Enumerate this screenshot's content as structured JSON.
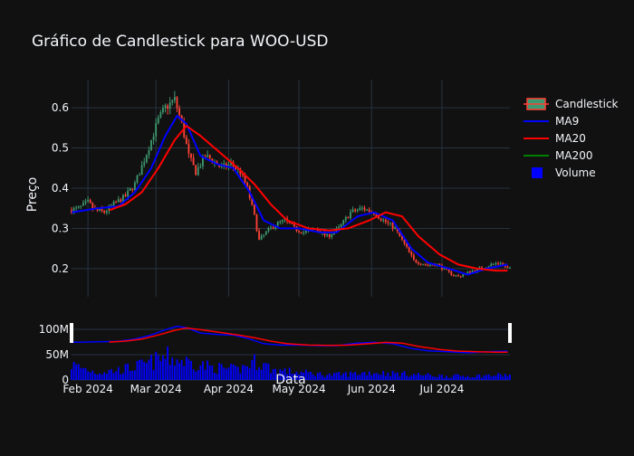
{
  "colors": {
    "background": "#111111",
    "grid": "#283442",
    "text": "#f2f5fa",
    "increasing": "#3D9970",
    "decreasing": "#FF4136",
    "ma9": "#0000ff",
    "ma20": "#ff0000",
    "ma200": "#008000",
    "volume": "#0000ff"
  },
  "chart_data": {
    "type": "candlestick",
    "title": "Gráfico de Candlestick para WOO-USD",
    "ylabel": "Preço",
    "xlabel": "Data",
    "legend_position": "top-right",
    "grid": true,
    "price_ylim": [
      0.13,
      0.67
    ],
    "price_yticks": [
      0.2,
      0.3,
      0.4,
      0.5,
      0.6
    ],
    "price_ytick_labels": [
      "0.2",
      "0.3",
      "0.4",
      "0.5",
      "0.6"
    ],
    "volume_ylim": [
      0,
      125000000
    ],
    "volume_yticks": [
      0,
      50000000,
      100000000
    ],
    "volume_ytick_labels": [
      "0",
      "50M",
      "100M"
    ],
    "x_range": [
      "2024-01-25",
      "2024-07-30"
    ],
    "x_ticks": [
      "2024-02-01",
      "2024-03-01",
      "2024-04-01",
      "2024-05-01",
      "2024-06-01",
      "2024-07-01"
    ],
    "x_tick_labels": [
      "Feb 2024",
      "Mar 2024",
      "Apr 2024",
      "May 2024",
      "Jun 2024",
      "Jul 2024"
    ],
    "legend": [
      "Candlestick",
      "MA9",
      "MA20",
      "MA200",
      "Volume"
    ],
    "close_anchors": [
      [
        "2024-01-25",
        0.345
      ],
      [
        "2024-01-28",
        0.35
      ],
      [
        "2024-02-01",
        0.365
      ],
      [
        "2024-02-04",
        0.345
      ],
      [
        "2024-02-08",
        0.34
      ],
      [
        "2024-02-12",
        0.36
      ],
      [
        "2024-02-17",
        0.38
      ],
      [
        "2024-02-21",
        0.41
      ],
      [
        "2024-02-25",
        0.47
      ],
      [
        "2024-02-28",
        0.52
      ],
      [
        "2024-03-02",
        0.57
      ],
      [
        "2024-03-05",
        0.6
      ],
      [
        "2024-03-09",
        0.62
      ],
      [
        "2024-03-12",
        0.56
      ],
      [
        "2024-03-15",
        0.48
      ],
      [
        "2024-03-18",
        0.44
      ],
      [
        "2024-03-22",
        0.48
      ],
      [
        "2024-03-25",
        0.47
      ],
      [
        "2024-03-29",
        0.45
      ],
      [
        "2024-04-02",
        0.46
      ],
      [
        "2024-04-06",
        0.44
      ],
      [
        "2024-04-09",
        0.4
      ],
      [
        "2024-04-12",
        0.33
      ],
      [
        "2024-04-14",
        0.27
      ],
      [
        "2024-04-17",
        0.29
      ],
      [
        "2024-04-21",
        0.31
      ],
      [
        "2024-04-25",
        0.32
      ],
      [
        "2024-04-29",
        0.3
      ],
      [
        "2024-05-03",
        0.29
      ],
      [
        "2024-05-08",
        0.3
      ],
      [
        "2024-05-13",
        0.28
      ],
      [
        "2024-05-18",
        0.3
      ],
      [
        "2024-05-23",
        0.34
      ],
      [
        "2024-05-28",
        0.35
      ],
      [
        "2024-06-02",
        0.34
      ],
      [
        "2024-06-06",
        0.32
      ],
      [
        "2024-06-11",
        0.3
      ],
      [
        "2024-06-15",
        0.26
      ],
      [
        "2024-06-19",
        0.22
      ],
      [
        "2024-06-24",
        0.21
      ],
      [
        "2024-06-29",
        0.21
      ],
      [
        "2024-07-04",
        0.19
      ],
      [
        "2024-07-08",
        0.18
      ],
      [
        "2024-07-12",
        0.19
      ],
      [
        "2024-07-17",
        0.2
      ],
      [
        "2024-07-22",
        0.21
      ],
      [
        "2024-07-26",
        0.215
      ],
      [
        "2024-07-29",
        0.2
      ]
    ],
    "ma9_anchors": [
      [
        "2024-01-25",
        0.34
      ],
      [
        "2024-02-05",
        0.35
      ],
      [
        "2024-02-14",
        0.355
      ],
      [
        "2024-02-21",
        0.39
      ],
      [
        "2024-02-28",
        0.45
      ],
      [
        "2024-03-05",
        0.53
      ],
      [
        "2024-03-10",
        0.58
      ],
      [
        "2024-03-14",
        0.56
      ],
      [
        "2024-03-20",
        0.48
      ],
      [
        "2024-03-27",
        0.46
      ],
      [
        "2024-04-03",
        0.45
      ],
      [
        "2024-04-10",
        0.39
      ],
      [
        "2024-04-16",
        0.32
      ],
      [
        "2024-04-23",
        0.3
      ],
      [
        "2024-05-01",
        0.3
      ],
      [
        "2024-05-10",
        0.29
      ],
      [
        "2024-05-17",
        0.29
      ],
      [
        "2024-05-26",
        0.33
      ],
      [
        "2024-06-02",
        0.34
      ],
      [
        "2024-06-10",
        0.32
      ],
      [
        "2024-06-18",
        0.25
      ],
      [
        "2024-06-25",
        0.215
      ],
      [
        "2024-07-04",
        0.2
      ],
      [
        "2024-07-12",
        0.185
      ],
      [
        "2024-07-20",
        0.2
      ],
      [
        "2024-07-29",
        0.21
      ]
    ],
    "ma20_anchors": [
      [
        "2024-02-10",
        0.345
      ],
      [
        "2024-02-17",
        0.36
      ],
      [
        "2024-02-24",
        0.39
      ],
      [
        "2024-03-02",
        0.45
      ],
      [
        "2024-03-09",
        0.52
      ],
      [
        "2024-03-14",
        0.555
      ],
      [
        "2024-03-20",
        0.53
      ],
      [
        "2024-03-28",
        0.49
      ],
      [
        "2024-04-05",
        0.45
      ],
      [
        "2024-04-12",
        0.41
      ],
      [
        "2024-04-19",
        0.36
      ],
      [
        "2024-04-26",
        0.32
      ],
      [
        "2024-05-05",
        0.3
      ],
      [
        "2024-05-14",
        0.295
      ],
      [
        "2024-05-22",
        0.3
      ],
      [
        "2024-05-31",
        0.32
      ],
      [
        "2024-06-07",
        0.34
      ],
      [
        "2024-06-14",
        0.33
      ],
      [
        "2024-06-21",
        0.28
      ],
      [
        "2024-06-30",
        0.235
      ],
      [
        "2024-07-08",
        0.21
      ],
      [
        "2024-07-16",
        0.2
      ],
      [
        "2024-07-24",
        0.195
      ],
      [
        "2024-07-29",
        0.195
      ]
    ],
    "volume_anchors": [
      [
        "2024-01-25",
        30000000
      ],
      [
        "2024-02-05",
        15000000
      ],
      [
        "2024-02-15",
        20000000
      ],
      [
        "2024-02-25",
        30000000
      ],
      [
        "2024-03-05",
        45000000
      ],
      [
        "2024-03-15",
        35000000
      ],
      [
        "2024-03-25",
        25000000
      ],
      [
        "2024-04-05",
        20000000
      ],
      [
        "2024-04-13",
        38000000
      ],
      [
        "2024-04-20",
        20000000
      ],
      [
        "2024-05-01",
        15000000
      ],
      [
        "2024-05-15",
        10000000
      ],
      [
        "2024-06-01",
        15000000
      ],
      [
        "2024-06-15",
        12000000
      ],
      [
        "2024-07-01",
        8000000
      ],
      [
        "2024-07-15",
        8000000
      ],
      [
        "2024-07-29",
        10000000
      ]
    ]
  }
}
